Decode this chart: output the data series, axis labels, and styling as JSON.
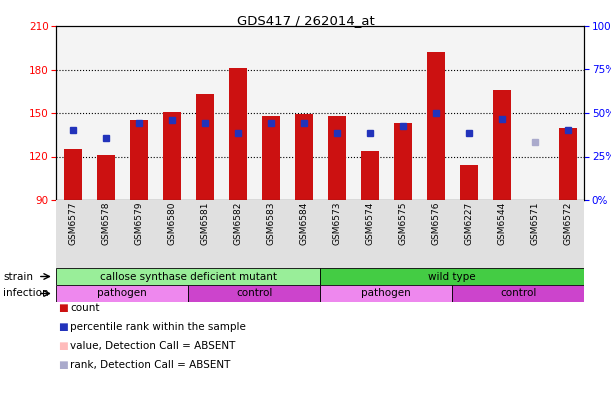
{
  "title": "GDS417 / 262014_at",
  "samples": [
    "GSM6577",
    "GSM6578",
    "GSM6579",
    "GSM6580",
    "GSM6581",
    "GSM6582",
    "GSM6583",
    "GSM6584",
    "GSM6573",
    "GSM6574",
    "GSM6575",
    "GSM6576",
    "GSM6227",
    "GSM6544",
    "GSM6571",
    "GSM6572"
  ],
  "bar_values": [
    125,
    121,
    145,
    151,
    163,
    181,
    148,
    149,
    148,
    124,
    143,
    192,
    114,
    166,
    90,
    140
  ],
  "bar_absent": [
    false,
    false,
    false,
    false,
    false,
    false,
    false,
    false,
    false,
    false,
    false,
    false,
    false,
    false,
    true,
    false
  ],
  "blue_values": [
    138,
    133,
    143,
    145,
    143,
    136,
    143,
    143,
    136,
    136,
    141,
    150,
    136,
    146,
    130,
    138
  ],
  "blue_absent": [
    false,
    false,
    false,
    false,
    false,
    false,
    false,
    false,
    false,
    false,
    false,
    false,
    false,
    false,
    true,
    false
  ],
  "ymin": 90,
  "ymax": 210,
  "yticks_left": [
    90,
    120,
    150,
    180,
    210
  ],
  "yticks_right_vals": [
    0,
    25,
    50,
    75,
    100
  ],
  "bar_color": "#cc1111",
  "bar_absent_color": "#ffbbbb",
  "dot_color": "#2233bb",
  "dot_absent_color": "#aaaacc",
  "strain_groups": [
    {
      "label": "callose synthase deficient mutant",
      "start": 0,
      "end": 8,
      "color": "#99ee99"
    },
    {
      "label": "wild type",
      "start": 8,
      "end": 16,
      "color": "#44cc44"
    }
  ],
  "infection_groups": [
    {
      "label": "pathogen",
      "start": 0,
      "end": 4,
      "color": "#ee88ee"
    },
    {
      "label": "control",
      "start": 4,
      "end": 8,
      "color": "#cc44cc"
    },
    {
      "label": "pathogen",
      "start": 8,
      "end": 12,
      "color": "#ee88ee"
    },
    {
      "label": "control",
      "start": 12,
      "end": 16,
      "color": "#cc44cc"
    }
  ],
  "legend_items": [
    {
      "label": "count",
      "color": "#cc1111"
    },
    {
      "label": "percentile rank within the sample",
      "color": "#2233bb"
    },
    {
      "label": "value, Detection Call = ABSENT",
      "color": "#ffbbbb"
    },
    {
      "label": "rank, Detection Call = ABSENT",
      "color": "#aaaacc"
    }
  ]
}
